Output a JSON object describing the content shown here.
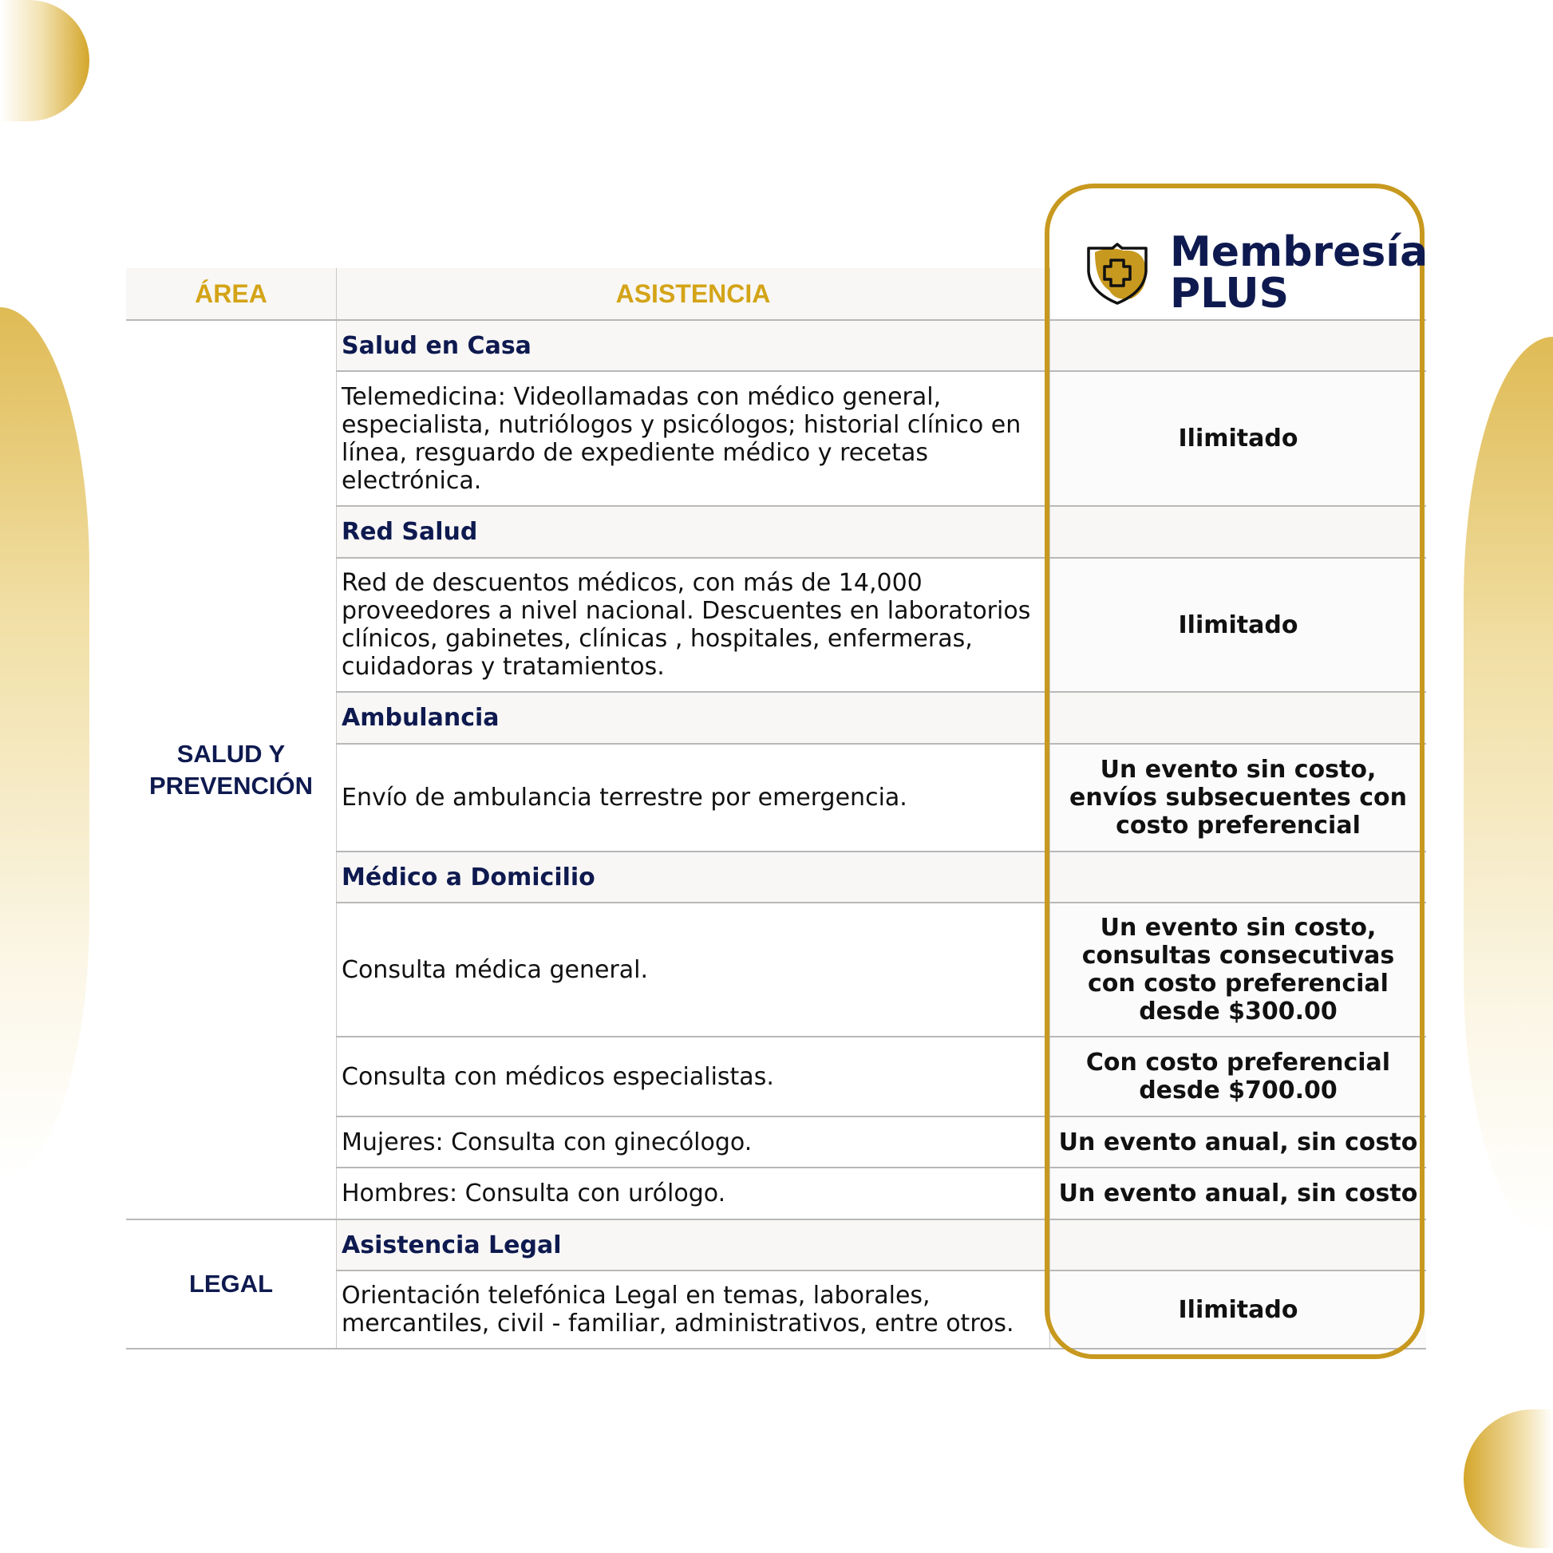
{
  "colors": {
    "gold": "#c8991f",
    "header_gold": "#d4a417",
    "navy": "#0e1a4f"
  },
  "brand": {
    "line1": "Membresía",
    "line2": "PLUS",
    "icon": "shield-medical-cross-icon"
  },
  "header": {
    "area": "ÁREA",
    "asistencia": "ASISTENCIA"
  },
  "areas": {
    "salud": "SALUD Y PREVENCIÓN",
    "legal": "LEGAL"
  },
  "rows": [
    {
      "type": "section",
      "title": "Salud en Casa"
    },
    {
      "type": "item",
      "text": "Telemedicina: Videollamadas con médico general, especialista, nutriólogos y psicólogos; historial clínico en línea, resguardo de expediente médico y recetas electrónica.",
      "value": "Ilimitado"
    },
    {
      "type": "section",
      "title": "Red Salud"
    },
    {
      "type": "item",
      "text": "Red de descuentos médicos, con más de 14,000 proveedores a nivel nacional. Descuentes en laboratorios clínicos, gabinetes, clínicas , hospitales, enfermeras, cuidadoras y tratamientos.",
      "value": "Ilimitado"
    },
    {
      "type": "section",
      "title": "Ambulancia"
    },
    {
      "type": "item",
      "text": "Envío de ambulancia terrestre por emergencia.",
      "value": "Un evento sin costo, envíos subsecuentes con costo preferencial"
    },
    {
      "type": "section",
      "title": "Médico a Domicilio"
    },
    {
      "type": "item",
      "text": "Consulta médica general.",
      "value": "Un evento sin costo, consultas consecutivas con costo preferencial desde $300.00"
    },
    {
      "type": "item",
      "text": "Consulta con médicos especialistas.",
      "value": "Con costo preferencial desde $700.00"
    },
    {
      "type": "item",
      "text": "Mujeres: Consulta con ginecólogo.",
      "value": "Un evento anual, sin costo"
    },
    {
      "type": "item",
      "text": "Hombres: Consulta con urólogo.",
      "value": "Un evento anual, sin costo"
    },
    {
      "type": "section",
      "title": "Asistencia Legal"
    },
    {
      "type": "item",
      "text": "Orientación telefónica Legal en temas, laborales, mercantiles, civil - familiar, administrativos, entre otros.",
      "value": "Ilimitado"
    }
  ]
}
